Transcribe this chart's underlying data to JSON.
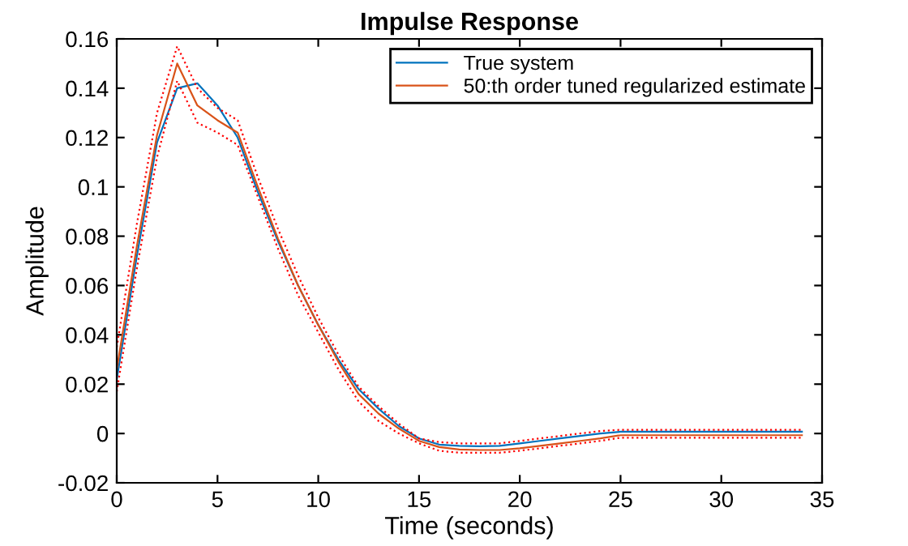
{
  "chart_data": {
    "type": "line",
    "title": "Impulse Response",
    "xlabel": "Time (seconds)",
    "ylabel": "Amplitude",
    "x": [
      0,
      1,
      2,
      3,
      4,
      5,
      6,
      7,
      8,
      9,
      10,
      11,
      12,
      13,
      14,
      15,
      16,
      17,
      18,
      19,
      20,
      21,
      22,
      23,
      24,
      25,
      26,
      27,
      28,
      29,
      30,
      31,
      32,
      33,
      34
    ],
    "series": [
      {
        "name": "True system",
        "color": "#0072bd",
        "line_style": "solid",
        "values": [
          0.022,
          0.072,
          0.118,
          0.14,
          0.142,
          0.133,
          0.12,
          0.098,
          0.078,
          0.06,
          0.044,
          0.03,
          0.018,
          0.01,
          0.003,
          -0.002,
          -0.0045,
          -0.005,
          -0.0052,
          -0.005,
          -0.004,
          -0.003,
          -0.002,
          -0.001,
          0,
          0.0007,
          0.0007,
          0.0007,
          0.0007,
          0.0007,
          0.0007,
          0.0007,
          0.0007,
          0.0007,
          0.0007
        ]
      },
      {
        "name": "50:th order tuned regularized estimate",
        "color": "#d95319",
        "line_style": "solid",
        "values": [
          0.026,
          0.076,
          0.121,
          0.15,
          0.133,
          0.127,
          0.122,
          0.1,
          0.079,
          0.06,
          0.044,
          0.029,
          0.016,
          0.008,
          0.002,
          -0.003,
          -0.0055,
          -0.0065,
          -0.0067,
          -0.0067,
          -0.006,
          -0.005,
          -0.004,
          -0.003,
          -0.002,
          -0.0007,
          -0.0007,
          -0.0007,
          -0.0007,
          -0.0007,
          -0.0007,
          -0.0007,
          -0.0007,
          -0.0007,
          -0.0007
        ]
      },
      {
        "color": "#ff0000",
        "line_style": "dotted",
        "values": [
          0.035,
          0.085,
          0.13,
          0.157,
          0.14,
          0.132,
          0.127,
          0.104,
          0.083,
          0.064,
          0.047,
          0.032,
          0.019,
          0.011,
          0.004,
          -0.002,
          -0.0035,
          -0.004,
          -0.004,
          -0.004,
          -0.003,
          -0.002,
          -0.001,
          0,
          0.001,
          0.0015,
          0.0015,
          0.0015,
          0.0015,
          0.0015,
          0.0015,
          0.0015,
          0.0015,
          0.0015,
          0.0015
        ]
      },
      {
        "color": "#ff0000",
        "line_style": "dotted",
        "values": [
          0.017,
          0.067,
          0.112,
          0.143,
          0.126,
          0.122,
          0.117,
          0.096,
          0.075,
          0.056,
          0.041,
          0.026,
          0.013,
          0.005,
          0,
          -0.004,
          -0.007,
          -0.0078,
          -0.0078,
          -0.0078,
          -0.007,
          -0.006,
          -0.005,
          -0.004,
          -0.003,
          -0.0017,
          -0.0017,
          -0.0017,
          -0.0017,
          -0.0017,
          -0.0017,
          -0.0017,
          -0.0017,
          -0.0017,
          -0.0017
        ]
      }
    ],
    "xlim": [
      0,
      35
    ],
    "xticks": [
      0,
      5,
      10,
      15,
      20,
      25,
      30,
      35
    ],
    "ylim": [
      -0.02,
      0.16
    ],
    "yticks": [
      -0.02,
      0,
      0.02,
      0.04,
      0.06,
      0.08,
      0.1,
      0.12,
      0.14,
      0.16
    ],
    "grid": false,
    "legend": "top right"
  }
}
